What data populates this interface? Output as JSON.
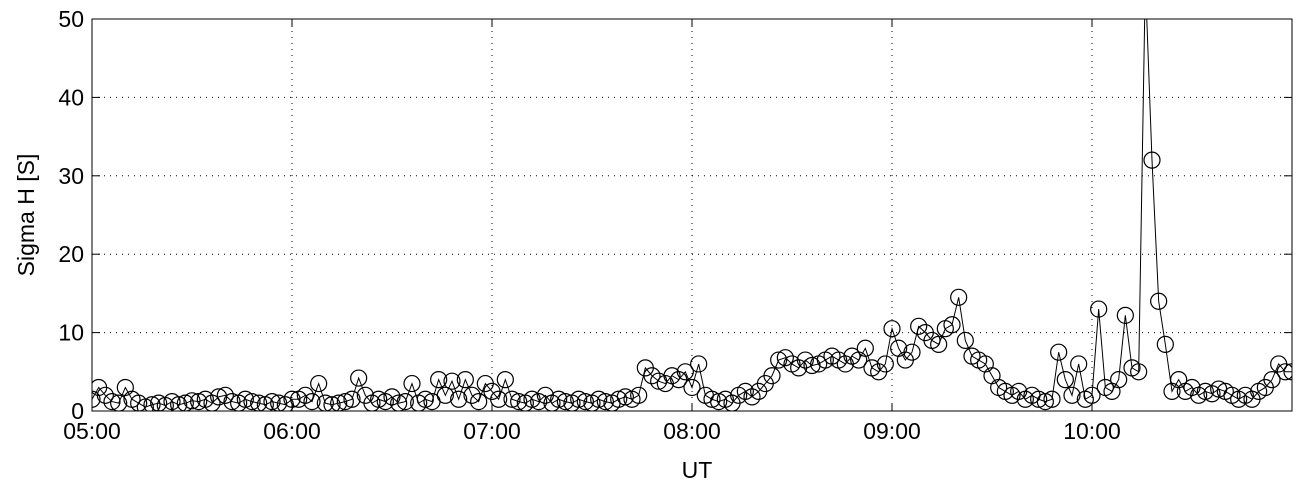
{
  "chart_data": {
    "type": "line",
    "x_label": "UT",
    "y_label": "Sigma H [S]",
    "x": [
      300,
      302,
      304,
      306,
      308,
      310,
      312,
      314,
      316,
      318,
      320,
      322,
      324,
      326,
      328,
      330,
      332,
      334,
      336,
      338,
      340,
      342,
      344,
      346,
      348,
      350,
      352,
      354,
      356,
      358,
      360,
      362,
      364,
      366,
      368,
      370,
      372,
      374,
      376,
      378,
      380,
      382,
      384,
      386,
      388,
      390,
      392,
      394,
      396,
      398,
      400,
      402,
      404,
      406,
      408,
      410,
      412,
      414,
      416,
      418,
      420,
      422,
      424,
      426,
      428,
      430,
      432,
      434,
      436,
      438,
      440,
      442,
      444,
      446,
      448,
      450,
      452,
      454,
      456,
      458,
      460,
      462,
      464,
      466,
      468,
      470,
      472,
      474,
      476,
      478,
      480,
      482,
      484,
      486,
      488,
      490,
      492,
      494,
      496,
      498,
      500,
      502,
      504,
      506,
      508,
      510,
      512,
      514,
      516,
      518,
      520,
      522,
      524,
      526,
      528,
      530,
      532,
      534,
      536,
      538,
      540,
      542,
      544,
      546,
      548,
      550,
      552,
      554,
      556,
      558,
      560,
      562,
      564,
      566,
      568,
      570,
      572,
      574,
      576,
      578,
      580,
      582,
      584,
      586,
      588,
      590,
      592,
      594,
      596,
      598,
      600,
      602,
      604,
      606,
      608,
      610,
      612,
      614,
      616,
      618,
      620,
      622,
      624,
      626,
      628,
      630,
      632,
      634,
      636,
      638,
      640,
      642,
      644,
      646,
      648,
      650,
      652,
      654,
      656,
      658,
      660
    ],
    "values": [
      1.5,
      3.0,
      2.0,
      1.2,
      1.0,
      3.0,
      1.5,
      1.0,
      0.5,
      0.8,
      1.0,
      0.7,
      1.2,
      0.8,
      1.0,
      1.3,
      1.2,
      1.5,
      1.0,
      1.8,
      2.0,
      1.2,
      1.0,
      1.5,
      1.2,
      1.0,
      0.8,
      1.2,
      1.0,
      0.8,
      1.5,
      1.5,
      2.0,
      1.2,
      3.5,
      1.0,
      0.8,
      1.0,
      1.2,
      1.5,
      4.2,
      2.0,
      1.0,
      1.5,
      1.2,
      1.8,
      1.0,
      1.2,
      3.5,
      1.0,
      1.5,
      1.2,
      4.0,
      2.0,
      3.8,
      1.5,
      4.0,
      2.0,
      1.2,
      3.5,
      2.5,
      1.5,
      4.0,
      1.5,
      1.2,
      1.0,
      1.5,
      1.2,
      2.0,
      1.0,
      1.5,
      1.2,
      1.0,
      1.5,
      1.2,
      1.0,
      1.5,
      1.2,
      1.0,
      1.5,
      1.8,
      1.5,
      2.0,
      5.5,
      4.5,
      3.8,
      3.5,
      4.5,
      4.0,
      5.0,
      3.0,
      6.0,
      2.0,
      1.5,
      1.2,
      1.5,
      1.0,
      2.0,
      2.5,
      1.8,
      2.5,
      3.5,
      4.5,
      6.5,
      6.8,
      6.0,
      5.5,
      6.5,
      5.8,
      6.0,
      6.5,
      7.0,
      6.5,
      6.0,
      7.0,
      6.5,
      8.0,
      5.5,
      5.0,
      6.0,
      10.5,
      8.0,
      6.5,
      7.5,
      10.8,
      10.0,
      9.0,
      8.5,
      10.5,
      11.0,
      14.5,
      9.0,
      7.0,
      6.5,
      6.0,
      4.5,
      3.0,
      2.5,
      2.0,
      2.5,
      1.5,
      2.0,
      1.5,
      1.2,
      1.5,
      7.5,
      4.0,
      2.0,
      6.0,
      1.5,
      2.0,
      13.0,
      3.0,
      2.5,
      4.0,
      12.2,
      5.5,
      5.0,
      55,
      32,
      14,
      8.5,
      2.5,
      4.0,
      2.5,
      3.0,
      2.0,
      2.5,
      2.2,
      2.8,
      2.5,
      2.0,
      1.5,
      2.0,
      1.5,
      2.5,
      3.0,
      4.0,
      6.0,
      5.0,
      5.0
    ],
    "color": "#000000",
    "xlim": [
      300,
      660
    ],
    "xticks": [
      {
        "value": 300,
        "label": "05:00"
      },
      {
        "value": 360,
        "label": "06:00"
      },
      {
        "value": 420,
        "label": "07:00"
      },
      {
        "value": 480,
        "label": "08:00"
      },
      {
        "value": 540,
        "label": "09:00"
      },
      {
        "value": 600,
        "label": "10:00"
      }
    ],
    "ylim": [
      0,
      50
    ],
    "yticks": [
      0,
      10,
      20,
      30,
      40,
      50
    ],
    "grid": true
  }
}
